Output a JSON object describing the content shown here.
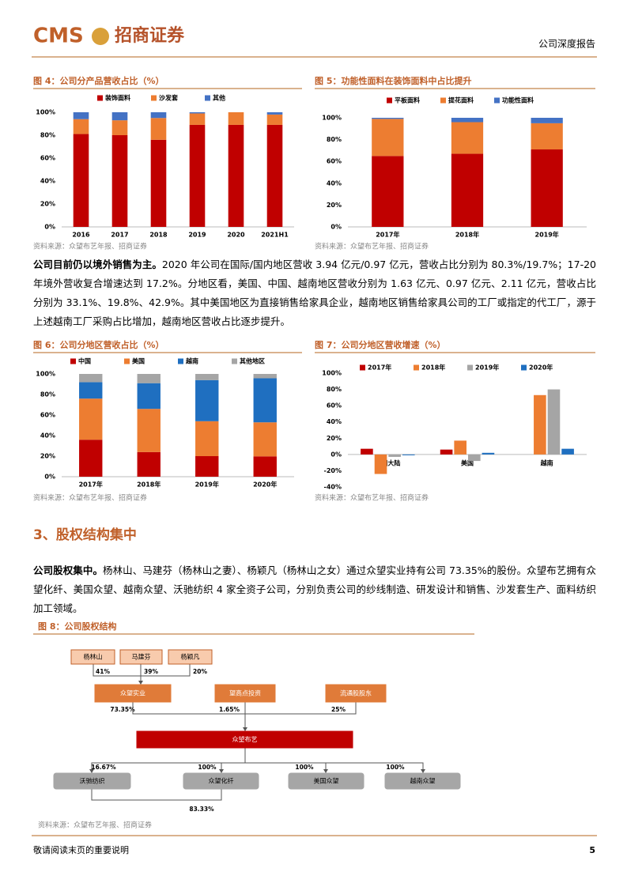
{
  "header": {
    "logo": "CMS",
    "brand": "招商证券",
    "report_type": "公司深度报告"
  },
  "chart_data": [
    {
      "type": "bar",
      "stacked": true,
      "title": "图 4：公司分产品营收占比（%）",
      "source": "资料来源：众望布艺年报、招商证券",
      "categories": [
        "2016",
        "2017",
        "2018",
        "2019",
        "2020",
        "2021H1"
      ],
      "series": [
        {
          "name": "装饰面料",
          "color": "#c00000",
          "values": [
            81,
            80,
            76,
            89,
            89,
            89
          ]
        },
        {
          "name": "沙发套",
          "color": "#ed7d31",
          "values": [
            13,
            13,
            19,
            10,
            11,
            9
          ]
        },
        {
          "name": "其他",
          "color": "#4472c4",
          "values": [
            6,
            7,
            5,
            1,
            0,
            2
          ]
        }
      ],
      "ylim": [
        0,
        100
      ],
      "yticks": [
        {
          "value": 0,
          "label": "0%"
        },
        {
          "value": 20,
          "label": "20%"
        },
        {
          "value": 40,
          "label": "40%"
        },
        {
          "value": 60,
          "label": "60%"
        },
        {
          "value": 80,
          "label": "80%"
        },
        {
          "value": 100,
          "label": "100%"
        }
      ],
      "legend": "top"
    },
    {
      "type": "bar",
      "stacked": true,
      "title": "图 5：功能性面料在装饰面料中占比提升",
      "source": "资料来源：众望布艺年报、招商证券",
      "categories": [
        "2017年",
        "2018年",
        "2019年"
      ],
      "series": [
        {
          "name": "平板面料",
          "color": "#c00000",
          "values": [
            65,
            67,
            71
          ]
        },
        {
          "name": "提花面料",
          "color": "#ed7d31",
          "values": [
            34,
            29,
            24
          ]
        },
        {
          "name": "功能性面料",
          "color": "#4472c4",
          "values": [
            1,
            4,
            5
          ]
        }
      ],
      "ylim": [
        0,
        100
      ],
      "yticks": [
        {
          "value": 0,
          "label": "0%"
        },
        {
          "value": 20,
          "label": "20%"
        },
        {
          "value": 40,
          "label": "40%"
        },
        {
          "value": 60,
          "label": "60%"
        },
        {
          "value": 80,
          "label": "80%"
        },
        {
          "value": 100,
          "label": "100%"
        }
      ],
      "legend": "top"
    },
    {
      "type": "bar",
      "stacked": true,
      "title": "图 6：公司分地区营收占比（%）",
      "source": "资料来源：众望布艺年报、招商证券",
      "categories": [
        "2017年",
        "2018年",
        "2019年",
        "2020年"
      ],
      "series": [
        {
          "name": "中国",
          "color": "#c00000",
          "values": [
            36,
            24,
            20,
            19.8
          ]
        },
        {
          "name": "美国",
          "color": "#ed7d31",
          "values": [
            40,
            42,
            34,
            33.1
          ]
        },
        {
          "name": "越南",
          "color": "#1f6fc0",
          "values": [
            16,
            25,
            40,
            42.9
          ]
        },
        {
          "name": "其他地区",
          "color": "#a5a5a5",
          "values": [
            8,
            9,
            6,
            4.2
          ]
        }
      ],
      "ylim": [
        0,
        100
      ],
      "yticks": [
        {
          "value": 0,
          "label": "0%"
        },
        {
          "value": 20,
          "label": "20%"
        },
        {
          "value": 40,
          "label": "40%"
        },
        {
          "value": 60,
          "label": "60%"
        },
        {
          "value": 80,
          "label": "80%"
        },
        {
          "value": 100,
          "label": "100%"
        }
      ],
      "legend": "top"
    },
    {
      "type": "bar",
      "stacked": false,
      "title": "图 7：公司分地区营收增速（%）",
      "source": "资料来源：众望布艺年报、招商证券",
      "categories": [
        "中国大陆",
        "美国",
        "越南"
      ],
      "series": [
        {
          "name": "2017年",
          "color": "#c00000",
          "values": [
            7,
            6,
            null
          ]
        },
        {
          "name": "2018年",
          "color": "#ed7d31",
          "values": [
            -24,
            17,
            73
          ]
        },
        {
          "name": "2019年",
          "color": "#a5a5a5",
          "values": [
            -3,
            -8,
            80
          ]
        },
        {
          "name": "2020年",
          "color": "#1f6fc0",
          "values": [
            -1,
            2,
            7
          ]
        }
      ],
      "ylim": [
        -40,
        100
      ],
      "yticks": [
        {
          "value": -40,
          "label": "-40%"
        },
        {
          "value": -20,
          "label": "-20%"
        },
        {
          "value": 0,
          "label": "0%"
        },
        {
          "value": 20,
          "label": "20%"
        },
        {
          "value": 40,
          "label": "40%"
        },
        {
          "value": 60,
          "label": "60%"
        },
        {
          "value": 80,
          "label": "80%"
        },
        {
          "value": 100,
          "label": "100%"
        }
      ],
      "legend": "top"
    }
  ],
  "paragraphs": [
    {
      "lead": "公司目前仍以境外销售为主。",
      "text": "2020 年公司在国际/国内地区营收 3.94 亿元/0.97 亿元，营收占比分别为 80.3%/19.7%；17-20 年境外营收复合增速达到 17.2%。分地区看，美国、中国、越南地区营收分别为 1.63 亿元、0.97 亿元、2.11 亿元，营收占比分别为 33.1%、19.8%、42.9%。其中美国地区为直接销售给家具企业，越南地区销售给家具公司的工厂或指定的代工厂，源于上述越南工厂采购占比增加，越南地区营收占比逐步提升。"
    },
    {
      "lead": "公司股权集中。",
      "text": "杨林山、马建芬（杨林山之妻）、杨颖凡（杨林山之女）通过众望实业持有公司 73.35%的股份。众望布艺拥有众望化纤、美国众望、越南众望、沃驰纺织 4 家全资子公司，分别负责公司的纱线制造、研发设计和销售、沙发套生产、面料纺织加工领域。"
    }
  ],
  "section": "3、股权结构集中",
  "figure8": {
    "title": "图 8：公司股权结构",
    "source": "资料来源：众望布艺年报、招商证券",
    "nodes": [
      "杨林山",
      "马建芬",
      "杨颖凡",
      "众望实业",
      "望高点投资",
      "流通股股东",
      "众望布艺",
      "沃驰纺织",
      "众望化纤",
      "美国众望",
      "越南众望"
    ],
    "edge_labels": [
      "41%",
      "39%",
      "20%",
      "73.35%",
      "1.65%",
      "25%",
      "16.67%",
      "100%",
      "100%",
      "100%",
      "83.33%"
    ]
  },
  "footer": {
    "note": "敬请阅读末页的重要说明",
    "page": "5"
  }
}
